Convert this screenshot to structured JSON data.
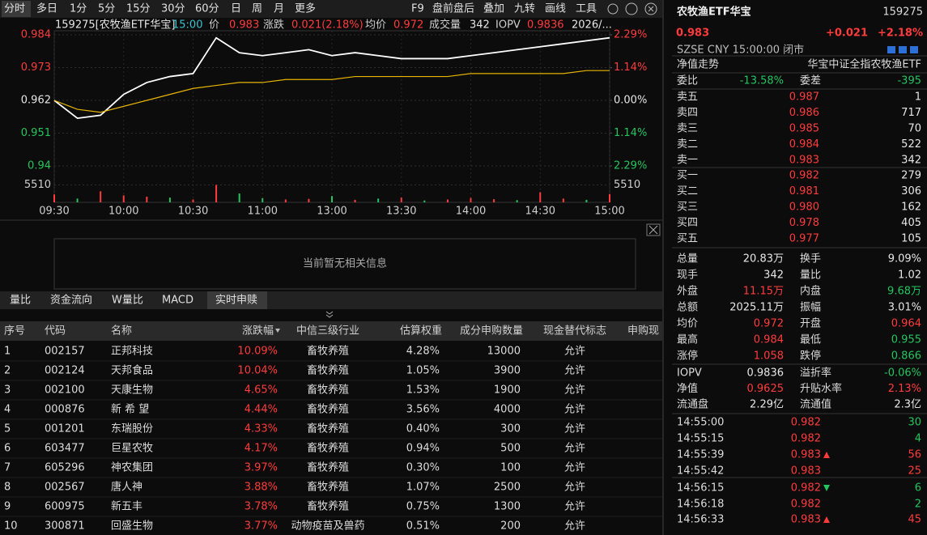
{
  "toolbar": {
    "tabs": [
      "分时",
      "多日",
      "1分",
      "5分",
      "15分",
      "30分",
      "60分",
      "日",
      "周",
      "月",
      "更多"
    ],
    "tools": [
      "F9",
      "盘前盘后",
      "叠加",
      "九转",
      "画线",
      "工具"
    ]
  },
  "chart_header": [
    {
      "text": "159275[农牧渔ETF华宝]",
      "color": "#e6e6e6"
    },
    {
      "text": "15:00",
      "color": "#35c4d0"
    },
    {
      "text": "价",
      "color": "#cfcfcf"
    },
    {
      "text": "0.983",
      "color": "#ff3b3b"
    },
    {
      "text": "涨跌",
      "color": "#cfcfcf"
    },
    {
      "text": "0.021(2.18%)",
      "color": "#ff3b3b"
    },
    {
      "text": "均价",
      "color": "#cfcfcf"
    },
    {
      "text": "0.972",
      "color": "#ff3b3b"
    },
    {
      "text": "成交量",
      "color": "#cfcfcf"
    },
    {
      "text": "342",
      "color": "#e6e6e6"
    },
    {
      "text": "IOPV",
      "color": "#cfcfcf"
    },
    {
      "text": "0.9836",
      "color": "#ff3b3b"
    },
    {
      "text": "2026/...",
      "color": "#e6e6e6"
    }
  ],
  "chart_data": {
    "type": "line",
    "x": [
      0,
      10,
      20,
      30,
      40,
      50,
      60,
      70,
      80,
      90,
      100,
      110,
      120,
      130,
      140,
      150,
      160,
      170,
      180,
      190,
      200,
      210,
      220,
      230,
      240
    ],
    "series": [
      {
        "name": "价",
        "color": "#ffffff",
        "values": [
          0.962,
          0.956,
          0.957,
          0.964,
          0.968,
          0.97,
          0.971,
          0.983,
          0.978,
          0.977,
          0.978,
          0.979,
          0.977,
          0.978,
          0.977,
          0.976,
          0.976,
          0.976,
          0.977,
          0.978,
          0.979,
          0.98,
          0.981,
          0.982,
          0.983
        ]
      },
      {
        "name": "均价",
        "color": "#e8b400",
        "values": [
          0.962,
          0.959,
          0.958,
          0.96,
          0.962,
          0.964,
          0.966,
          0.967,
          0.968,
          0.968,
          0.969,
          0.969,
          0.969,
          0.97,
          0.97,
          0.97,
          0.97,
          0.97,
          0.971,
          0.971,
          0.971,
          0.971,
          0.971,
          0.972,
          0.972
        ]
      }
    ],
    "volume": {
      "values": [
        2500,
        1200,
        3500,
        2200,
        1800,
        1500,
        900,
        5510,
        2800,
        1300,
        900,
        1100,
        2000,
        800,
        1200,
        1500,
        600,
        900,
        1400,
        1000,
        700,
        3200,
        1200,
        800,
        2600
      ],
      "colors": [
        "#ff3b3b",
        "#22c55e",
        "#ff3b3b",
        "#ff3b3b",
        "#ff3b3b",
        "#22c55e",
        "#ff3b3b",
        "#ff3b3b",
        "#22c55e",
        "#22c55e",
        "#ff3b3b",
        "#ff3b3b",
        "#22c55e",
        "#ff3b3b",
        "#22c55e",
        "#ff3b3b",
        "#22c55e",
        "#ff3b3b",
        "#ff3b3b",
        "#ff3b3b",
        "#22c55e",
        "#ff3b3b",
        "#ff3b3b",
        "#22c55e",
        "#ff3b3b"
      ],
      "ylim": [
        0,
        11020
      ],
      "yticks": [
        5510
      ]
    },
    "xlim": [
      0,
      240
    ],
    "xticks": [
      {
        "value": 0,
        "label": "09:30"
      },
      {
        "value": 30,
        "label": "10:00"
      },
      {
        "value": 60,
        "label": "10:30"
      },
      {
        "value": 90,
        "label": "11:00"
      },
      {
        "value": 120,
        "label": "13:00"
      },
      {
        "value": 150,
        "label": "13:30"
      },
      {
        "value": 180,
        "label": "14:00"
      },
      {
        "value": 210,
        "label": "14:30"
      },
      {
        "value": 240,
        "label": "15:00"
      }
    ],
    "ylim": [
      0.94,
      0.984
    ],
    "yticks": [
      0.984,
      0.973,
      0.962,
      0.951,
      0.94
    ],
    "ytick_colors": [
      "#ff3b3b",
      "#ff3b3b",
      "#e6e6e6",
      "#22c55e",
      "#22c55e"
    ],
    "y2lim": [
      -2.29,
      2.29
    ],
    "y2ticks": [
      {
        "value": 2.29,
        "label": "2.29%"
      },
      {
        "value": 1.14,
        "label": "1.14%"
      },
      {
        "value": 0,
        "label": "0.00%"
      },
      {
        "value": -1.14,
        "label": "1.14%"
      },
      {
        "value": -2.29,
        "label": "2.29%"
      }
    ],
    "y2tick_colors": [
      "#ff3b3b",
      "#ff3b3b",
      "#e6e6e6",
      "#22c55e",
      "#22c55e"
    ],
    "grid": true
  },
  "info_panel": {
    "message": "当前暂无相关信息"
  },
  "sub_tabs": [
    "量比",
    "资金流向",
    "W量比",
    "MACD",
    "实时申赎"
  ],
  "table": {
    "headers": [
      "序号",
      "代码",
      "名称",
      "涨跌幅",
      "中信三级行业",
      "估算权重",
      "成分申购数量",
      "现金替代标志",
      "申购现"
    ],
    "rows": [
      [
        "1",
        "002157",
        "正邦科技",
        "10.09%",
        "畜牧养殖",
        "4.28%",
        "13000",
        "允许"
      ],
      [
        "2",
        "002124",
        "天邦食品",
        "10.04%",
        "畜牧养殖",
        "1.05%",
        "3900",
        "允许"
      ],
      [
        "3",
        "002100",
        "天康生物",
        "4.65%",
        "畜牧养殖",
        "1.53%",
        "1900",
        "允许"
      ],
      [
        "4",
        "000876",
        "新 希 望",
        "4.44%",
        "畜牧养殖",
        "3.56%",
        "4000",
        "允许"
      ],
      [
        "5",
        "001201",
        "东瑞股份",
        "4.33%",
        "畜牧养殖",
        "0.40%",
        "300",
        "允许"
      ],
      [
        "6",
        "603477",
        "巨星农牧",
        "4.17%",
        "畜牧养殖",
        "0.94%",
        "500",
        "允许"
      ],
      [
        "7",
        "605296",
        "神农集团",
        "3.97%",
        "畜牧养殖",
        "0.30%",
        "100",
        "允许"
      ],
      [
        "8",
        "002567",
        "唐人神",
        "3.88%",
        "畜牧养殖",
        "1.07%",
        "2500",
        "允许"
      ],
      [
        "9",
        "600975",
        "新五丰",
        "3.78%",
        "畜牧养殖",
        "0.75%",
        "1300",
        "允许"
      ],
      [
        "10",
        "300871",
        "回盛生物",
        "3.77%",
        "动物疫苗及兽药",
        "0.51%",
        "200",
        "允许"
      ]
    ]
  },
  "quote": {
    "name": "农牧渔ETF华宝",
    "code": "159275",
    "price": "0.983",
    "change": "+0.021",
    "change_pct": "+2.18%",
    "status": "SZSE  CNY  15:00:00  闭市",
    "nav_label": "净值走势",
    "fund_name": "华宝中证全指农牧渔ETF",
    "ratio": [
      {
        "label": "委比",
        "value": "-13.58%",
        "color": "#22c55e"
      },
      {
        "label": "委差",
        "value": "-395",
        "color": "#22c55e"
      }
    ],
    "sells": [
      {
        "label": "卖五",
        "price": "0.987",
        "volume": "1"
      },
      {
        "label": "卖四",
        "price": "0.986",
        "volume": "717"
      },
      {
        "label": "卖三",
        "price": "0.985",
        "volume": "70"
      },
      {
        "label": "卖二",
        "price": "0.984",
        "volume": "522"
      },
      {
        "label": "卖一",
        "price": "0.983",
        "volume": "342"
      }
    ],
    "buys": [
      {
        "label": "买一",
        "price": "0.982",
        "volume": "279"
      },
      {
        "label": "买二",
        "price": "0.981",
        "volume": "306"
      },
      {
        "label": "买三",
        "price": "0.980",
        "volume": "162"
      },
      {
        "label": "买四",
        "price": "0.978",
        "volume": "405"
      },
      {
        "label": "买五",
        "price": "0.977",
        "volume": "105"
      }
    ],
    "stats": [
      [
        {
          "label": "总量",
          "value": "20.83万"
        },
        {
          "label": "换手",
          "value": "9.09%"
        }
      ],
      [
        {
          "label": "现手",
          "value": "342"
        },
        {
          "label": "量比",
          "value": "1.02"
        }
      ],
      [
        {
          "label": "外盘",
          "value": "11.15万",
          "color": "#ff3b3b"
        },
        {
          "label": "内盘",
          "value": "9.68万",
          "color": "#22c55e"
        }
      ],
      [
        {
          "label": "总额",
          "value": "2025.11万"
        },
        {
          "label": "振幅",
          "value": "3.01%"
        }
      ],
      [
        {
          "label": "均价",
          "value": "0.972",
          "color": "#ff3b3b"
        },
        {
          "label": "开盘",
          "value": "0.964",
          "color": "#ff3b3b"
        }
      ],
      [
        {
          "label": "最高",
          "value": "0.984",
          "color": "#ff3b3b"
        },
        {
          "label": "最低",
          "value": "0.955",
          "color": "#22c55e"
        }
      ],
      [
        {
          "label": "涨停",
          "value": "1.058",
          "color": "#ff3b3b"
        },
        {
          "label": "跌停",
          "value": "0.866",
          "color": "#22c55e"
        }
      ]
    ],
    "fund_stats": [
      [
        {
          "label": "IOPV",
          "value": "0.9836"
        },
        {
          "label": "溢折率",
          "value": "-0.06%",
          "color": "#22c55e"
        }
      ],
      [
        {
          "label": "净值",
          "value": "0.9625",
          "color": "#ff3b3b"
        },
        {
          "label": "升贴水率",
          "value": "2.13%",
          "color": "#ff3b3b"
        }
      ],
      [
        {
          "label": "流通盘",
          "value": "2.29亿"
        },
        {
          "label": "流通值",
          "value": "2.3亿"
        }
      ]
    ],
    "trades": [
      {
        "time": "14:55:00",
        "price": "0.982",
        "volume": "30",
        "volume_color": "#22c55e"
      },
      {
        "time": "14:55:15",
        "price": "0.982",
        "volume": "4",
        "volume_color": "#22c55e"
      },
      {
        "time": "14:55:39",
        "price": "0.983",
        "volume": "56",
        "volume_color": "#ff3b3b",
        "arrow": "up"
      },
      {
        "time": "14:55:42",
        "price": "0.983",
        "volume": "25",
        "volume_color": "#ff3b3b"
      },
      {
        "time": "14:56:15",
        "price": "0.982",
        "volume": "6",
        "volume_color": "#22c55e",
        "arrow": "down"
      },
      {
        "time": "14:56:18",
        "price": "0.982",
        "volume": "2",
        "volume_color": "#22c55e"
      },
      {
        "time": "14:56:33",
        "price": "0.983",
        "volume": "45",
        "volume_color": "#ff3b3b",
        "arrow": "up"
      }
    ]
  }
}
